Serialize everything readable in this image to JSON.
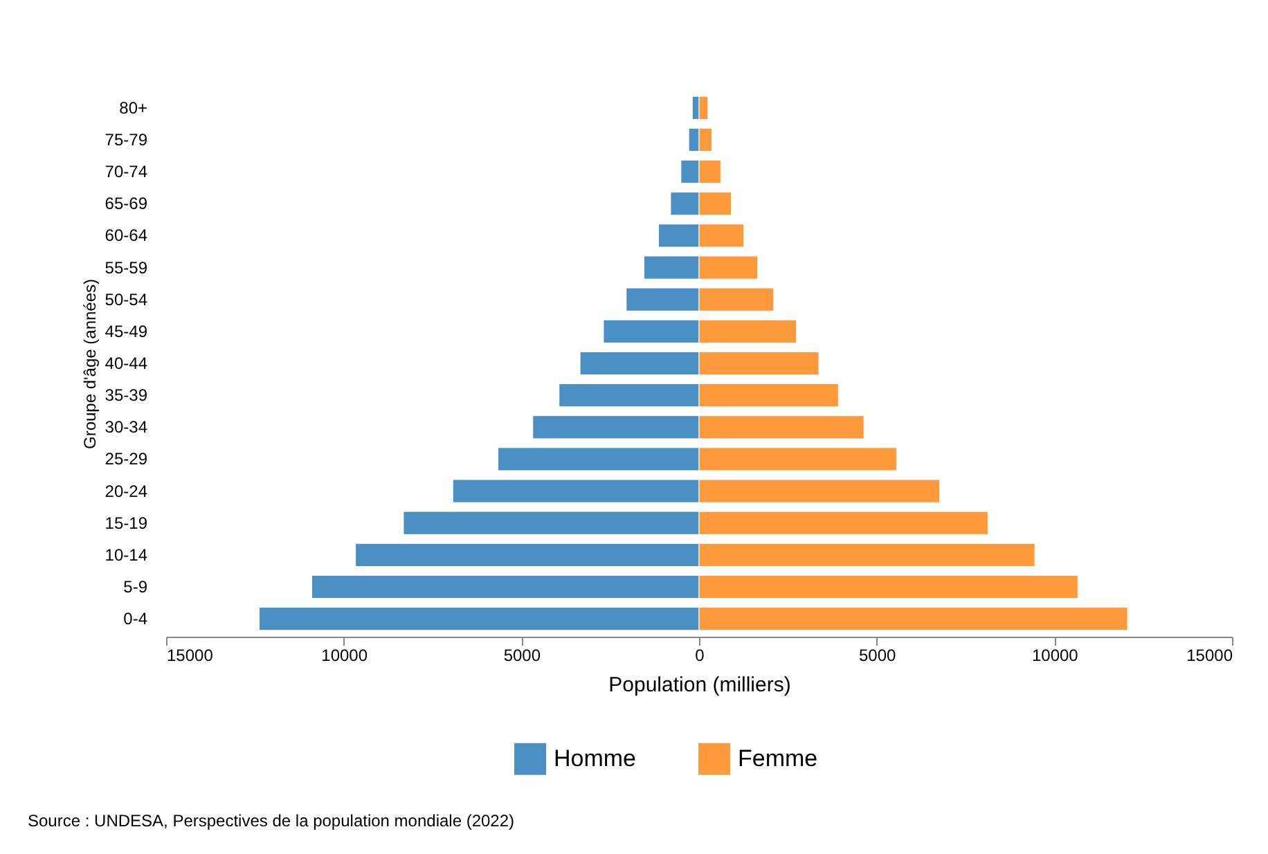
{
  "chart_data": {
    "type": "bar",
    "orientation": "horizontal",
    "stacked": true,
    "categories": [
      "80+",
      "75-79",
      "70-74",
      "65-69",
      "60-64",
      "55-59",
      "50-54",
      "45-49",
      "40-44",
      "35-39",
      "30-34",
      "25-29",
      "20-24",
      "15-19",
      "10-14",
      "5-9",
      "0-4"
    ],
    "series": [
      {
        "name": "Homme",
        "color": "#4a90c4",
        "values": [
          -190,
          -290,
          -510,
          -800,
          -1140,
          -1550,
          -2050,
          -2690,
          -3350,
          -3940,
          -4680,
          -5660,
          -6930,
          -8320,
          -9670,
          -10900,
          -12380
        ]
      },
      {
        "name": "Femme",
        "color": "#ff9a3c",
        "values": [
          250,
          360,
          610,
          910,
          1260,
          1650,
          2100,
          2740,
          3370,
          3920,
          4640,
          5560,
          6770,
          8130,
          9450,
          10660,
          12060
        ]
      }
    ],
    "xlabel": "Population (milliers)",
    "ylabel": "Groupe d'âge (années)",
    "xlim": [
      -15000,
      15000
    ],
    "xticks": [
      {
        "value": -15000,
        "label": "15000"
      },
      {
        "value": -10000,
        "label": "10000"
      },
      {
        "value": -5000,
        "label": "5000"
      },
      0,
      5000,
      10000,
      15000
    ],
    "legend": "bottom",
    "grid": false,
    "annotations": [
      "Source : UNDESA, Perspectives de la population mondiale (2022)"
    ]
  }
}
